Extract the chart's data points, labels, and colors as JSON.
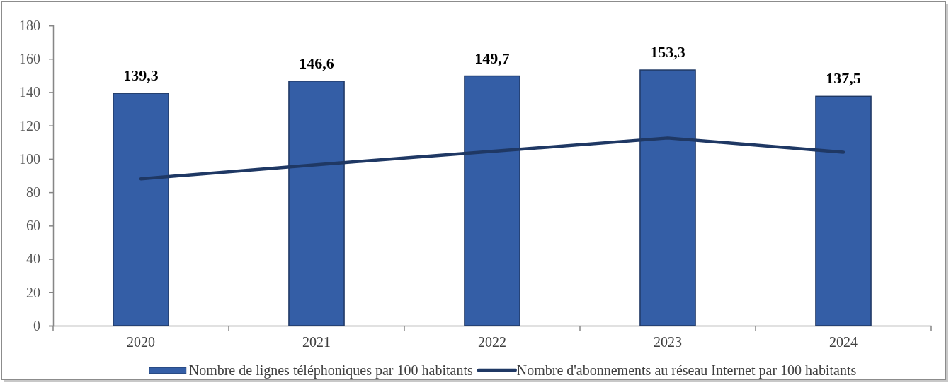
{
  "chart_data": {
    "type": "bar",
    "categories": [
      "2020",
      "2021",
      "2022",
      "2023",
      "2024"
    ],
    "series": [
      {
        "name": "Nombre de lignes téléphoniques par 100 habitants",
        "color": "#345ea6",
        "values": [
          139.3,
          146.6,
          149.7,
          153.3,
          137.5
        ],
        "value_labels": [
          "139,3",
          "146,6",
          "149,7",
          "153,3",
          "137,5"
        ]
      },
      {
        "name": "Nombre d'abonnements au réseau Internet par 100 habitants",
        "type": "line",
        "color": "#1f3864",
        "values": [
          88,
          96.5,
          104.5,
          112.5,
          104
        ]
      }
    ],
    "ylim": [
      0,
      180
    ],
    "yticks": [
      0,
      20,
      40,
      60,
      80,
      100,
      120,
      140,
      160,
      180
    ],
    "grid": false,
    "legend": "bottom"
  }
}
